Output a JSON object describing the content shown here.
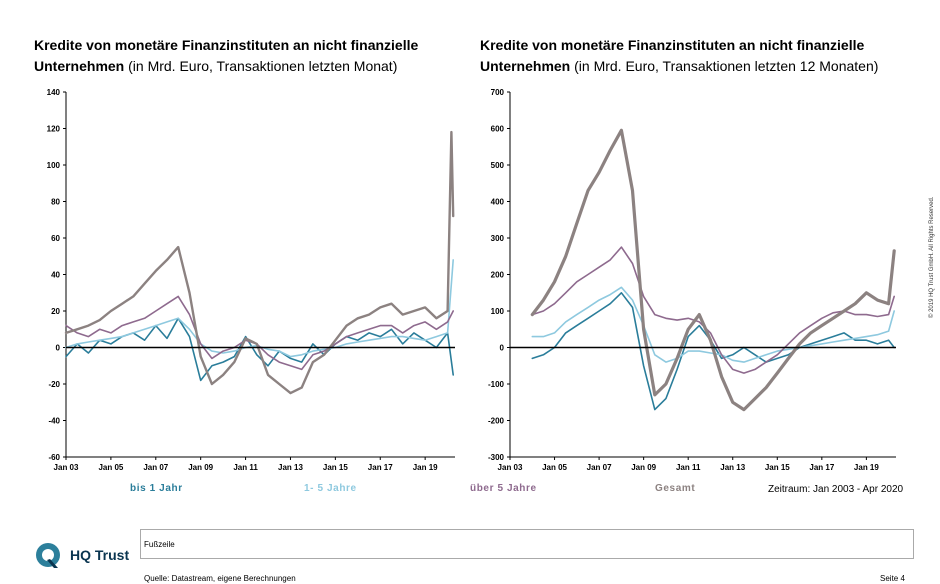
{
  "titles": {
    "left_bold": "Kredite von monetäre Finanzinstituten an nicht finanzielle Unternehmen",
    "left_normal": "(in Mrd. Euro, Transaktionen letzten Monat)",
    "right_bold": "Kredite von monetäre Finanzinstituten an nicht finanzielle Unternehmen",
    "right_normal": "(in Mrd. Euro, Transaktionen letzten 12 Monaten)"
  },
  "legend": {
    "s1": "bis 1 Jahr",
    "s2": "1- 5 Jahre",
    "s3": "über 5 Jahre",
    "s4": "Gesamt"
  },
  "colors": {
    "bis1": "#2a7d9a",
    "bis5": "#8ec9df",
    "ueber5": "#8e6a8e",
    "gesamt": "#8c8281",
    "logo": "#2c7f9b"
  },
  "zeitraum": "Zeitraum: Jan 2003 - Apr 2020",
  "copyright": "© 2019 HQ Trust GmbH. All Rights Reserved.",
  "footer": {
    "label": "Fußzeile",
    "source": "Quelle: Datastream, eigene Berechnungen",
    "page": "Seite 4"
  },
  "logo": {
    "text": "HQ Trust"
  },
  "chart_data": [
    {
      "type": "line",
      "title": "Kredite von monetäre Finanzinstituten an nicht finanzielle Unternehmen (in Mrd. Euro, Transaktionen letzten Monat)",
      "xlabel": "",
      "ylabel": "",
      "xlim": [
        2003,
        2020.33
      ],
      "ylim": [
        -60,
        140
      ],
      "yticks": [
        140,
        120,
        100,
        80,
        60,
        40,
        20,
        0,
        -20,
        -40,
        -60
      ],
      "xticks": [
        "Jan 03",
        "Jan 05",
        "Jan 07",
        "Jan 09",
        "Jan 11",
        "Jan 13",
        "Jan 15",
        "Jan 17",
        "Jan 19"
      ],
      "series": [
        {
          "name": "bis 1 Jahr",
          "color_key": "bis1",
          "x": [
            2003,
            2003.5,
            2004,
            2004.5,
            2005,
            2005.5,
            2006,
            2006.5,
            2007,
            2007.5,
            2008,
            2008.5,
            2009,
            2009.5,
            2010,
            2010.5,
            2011,
            2011.5,
            2012,
            2012.5,
            2013,
            2013.5,
            2014,
            2014.5,
            2015,
            2015.5,
            2016,
            2016.5,
            2017,
            2017.5,
            2018,
            2018.5,
            2019,
            2019.5,
            2020,
            2020.25
          ],
          "y": [
            -5,
            2,
            -3,
            4,
            2,
            6,
            8,
            4,
            12,
            5,
            16,
            6,
            -18,
            -10,
            -8,
            -5,
            6,
            -4,
            -10,
            -2,
            -6,
            -8,
            2,
            -4,
            2,
            6,
            4,
            8,
            6,
            10,
            2,
            8,
            4,
            0,
            8,
            -15
          ]
        },
        {
          "name": "1- 5 Jahre",
          "color_key": "bis5",
          "x": [
            2003,
            2003.5,
            2004,
            2004.5,
            2005,
            2005.5,
            2006,
            2006.5,
            2007,
            2007.5,
            2008,
            2008.5,
            2009,
            2009.5,
            2010,
            2010.5,
            2011,
            2011.5,
            2012,
            2012.5,
            2013,
            2013.5,
            2014,
            2014.5,
            2015,
            2015.5,
            2016,
            2016.5,
            2017,
            2017.5,
            2018,
            2018.5,
            2019,
            2019.5,
            2020,
            2020.25
          ],
          "y": [
            0,
            2,
            3,
            4,
            5,
            6,
            8,
            10,
            12,
            14,
            16,
            10,
            2,
            -2,
            -3,
            -2,
            0,
            1,
            -1,
            -2,
            -5,
            -4,
            -2,
            -1,
            0,
            2,
            3,
            4,
            5,
            6,
            6,
            5,
            4,
            6,
            8,
            48
          ]
        },
        {
          "name": "über 5 Jahre",
          "color_key": "ueber5",
          "x": [
            2003,
            2003.5,
            2004,
            2004.5,
            2005,
            2005.5,
            2006,
            2006.5,
            2007,
            2007.5,
            2008,
            2008.5,
            2009,
            2009.5,
            2010,
            2010.5,
            2011,
            2011.5,
            2012,
            2012.5,
            2013,
            2013.5,
            2014,
            2014.5,
            2015,
            2015.5,
            2016,
            2016.5,
            2017,
            2017.5,
            2018,
            2018.5,
            2019,
            2019.5,
            2020,
            2020.25
          ],
          "y": [
            12,
            8,
            6,
            10,
            8,
            12,
            14,
            16,
            20,
            24,
            28,
            18,
            2,
            -6,
            -2,
            0,
            4,
            2,
            -4,
            -8,
            -10,
            -12,
            -4,
            -2,
            2,
            6,
            8,
            10,
            12,
            12,
            8,
            12,
            14,
            10,
            14,
            20
          ]
        },
        {
          "name": "Gesamt",
          "color_key": "gesamt",
          "x": [
            2003,
            2003.5,
            2004,
            2004.5,
            2005,
            2005.5,
            2006,
            2006.5,
            2007,
            2007.5,
            2008,
            2008.5,
            2009,
            2009.5,
            2010,
            2010.5,
            2011,
            2011.5,
            2012,
            2012.5,
            2013,
            2013.5,
            2014,
            2014.5,
            2015,
            2015.5,
            2016,
            2016.5,
            2017,
            2017.5,
            2018,
            2018.5,
            2019,
            2019.5,
            2020,
            2020.17,
            2020.25
          ],
          "y": [
            8,
            10,
            12,
            15,
            20,
            24,
            28,
            35,
            42,
            48,
            55,
            30,
            -5,
            -20,
            -15,
            -8,
            5,
            2,
            -15,
            -20,
            -25,
            -22,
            -8,
            -4,
            4,
            12,
            16,
            18,
            22,
            24,
            18,
            20,
            22,
            16,
            20,
            118,
            72
          ]
        }
      ]
    },
    {
      "type": "line",
      "title": "Kredite von monetäre Finanzinstituten an nicht finanzielle Unternehmen (in Mrd. Euro, Transaktionen letzten 12 Monaten)",
      "xlabel": "",
      "ylabel": "",
      "xlim": [
        2003,
        2020.33
      ],
      "ylim": [
        -300,
        700
      ],
      "yticks": [
        700,
        600,
        500,
        400,
        300,
        200,
        100,
        0,
        -100,
        -200,
        -300
      ],
      "xticks": [
        "Jan 03",
        "Jan 05",
        "Jan 07",
        "Jan 09",
        "Jan 11",
        "Jan 13",
        "Jan 15",
        "Jan 17",
        "Jan 19"
      ],
      "series": [
        {
          "name": "bis 1 Jahr",
          "color_key": "bis1",
          "x": [
            2004,
            2004.5,
            2005,
            2005.5,
            2006,
            2006.5,
            2007,
            2007.5,
            2008,
            2008.5,
            2009,
            2009.5,
            2010,
            2010.5,
            2011,
            2011.5,
            2012,
            2012.5,
            2013,
            2013.5,
            2014,
            2014.5,
            2015,
            2015.5,
            2016,
            2016.5,
            2017,
            2017.5,
            2018,
            2018.5,
            2019,
            2019.5,
            2020,
            2020.25
          ],
          "y": [
            -30,
            -20,
            0,
            40,
            60,
            80,
            100,
            120,
            150,
            110,
            -50,
            -170,
            -140,
            -60,
            30,
            60,
            20,
            -30,
            -20,
            0,
            -20,
            -40,
            -30,
            -20,
            0,
            10,
            20,
            30,
            40,
            20,
            20,
            10,
            20,
            0
          ]
        },
        {
          "name": "1- 5 Jahre",
          "color_key": "bis5",
          "x": [
            2004,
            2004.5,
            2005,
            2005.5,
            2006,
            2006.5,
            2007,
            2007.5,
            2008,
            2008.5,
            2009,
            2009.5,
            2010,
            2010.5,
            2011,
            2011.5,
            2012,
            2012.5,
            2013,
            2013.5,
            2014,
            2014.5,
            2015,
            2015.5,
            2016,
            2016.5,
            2017,
            2017.5,
            2018,
            2018.5,
            2019,
            2019.5,
            2020,
            2020.25
          ],
          "y": [
            30,
            30,
            40,
            70,
            90,
            110,
            130,
            145,
            165,
            130,
            60,
            -20,
            -40,
            -30,
            -10,
            -10,
            -15,
            -20,
            -35,
            -40,
            -30,
            -20,
            -10,
            -5,
            0,
            5,
            10,
            15,
            20,
            25,
            30,
            35,
            45,
            100
          ]
        },
        {
          "name": "über 5 Jahre",
          "color_key": "ueber5",
          "x": [
            2004,
            2004.5,
            2005,
            2005.5,
            2006,
            2006.5,
            2007,
            2007.5,
            2008,
            2008.5,
            2009,
            2009.5,
            2010,
            2010.5,
            2011,
            2011.5,
            2012,
            2012.5,
            2013,
            2013.5,
            2014,
            2014.5,
            2015,
            2015.5,
            2016,
            2016.5,
            2017,
            2017.5,
            2018,
            2018.5,
            2019,
            2019.5,
            2020,
            2020.25
          ],
          "y": [
            90,
            100,
            120,
            150,
            180,
            200,
            220,
            240,
            275,
            230,
            140,
            90,
            80,
            75,
            80,
            70,
            40,
            -20,
            -60,
            -70,
            -60,
            -40,
            -20,
            10,
            40,
            60,
            80,
            95,
            100,
            90,
            90,
            85,
            90,
            140
          ]
        },
        {
          "name": "Gesamt",
          "color_key": "gesamt",
          "x": [
            2004,
            2004.5,
            2005,
            2005.5,
            2006,
            2006.5,
            2007,
            2007.5,
            2008,
            2008.5,
            2009,
            2009.5,
            2010,
            2010.5,
            2011,
            2011.5,
            2012,
            2012.5,
            2013,
            2013.5,
            2014,
            2014.5,
            2015,
            2015.5,
            2016,
            2016.5,
            2017,
            2017.5,
            2018,
            2018.5,
            2019,
            2019.5,
            2020,
            2020.25
          ],
          "y": [
            90,
            130,
            180,
            250,
            340,
            430,
            480,
            540,
            595,
            430,
            50,
            -130,
            -100,
            -30,
            50,
            90,
            20,
            -80,
            -150,
            -170,
            -140,
            -110,
            -70,
            -30,
            10,
            40,
            60,
            80,
            100,
            120,
            150,
            130,
            120,
            265
          ]
        }
      ]
    }
  ]
}
